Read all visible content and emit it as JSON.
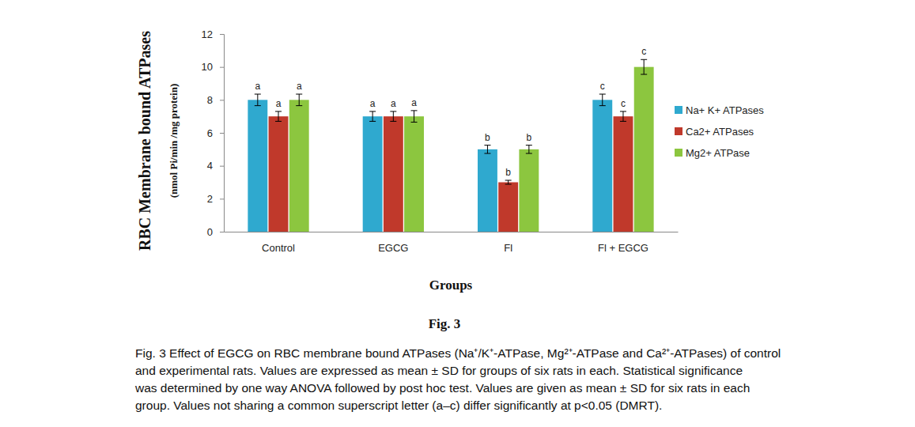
{
  "chart_data": {
    "type": "bar",
    "title": "Fig. 3",
    "caption": [
      "Fig. 3 Effect of EGCG on RBC membrane bound ATPases (Na⁺/K⁺-ATPase, Mg²⁺-ATPase and Ca²⁺-ATPases) of control",
      "and experimental rats. Values are expressed as mean ± SD for groups of six rats in each. Statistical significance",
      "was determined by one way ANOVA followed by post hoc test. Values are given as mean ± SD for six rats in each",
      "group. Values not sharing a common superscript letter (a–c) differ significantly at p<0.05 (DMRT)."
    ],
    "xlabel": "Groups",
    "ylabel": [
      "RBC Membrane bound ATPases",
      "(nmol Pi/min /mg protein)"
    ],
    "categories": [
      "Control",
      "EGCG",
      "Fl",
      "Fl + EGCG"
    ],
    "series": [
      {
        "name": "Na+ K+ ATPases",
        "color": "#2fa9cf",
        "values": [
          8,
          7,
          5,
          8
        ],
        "errors": [
          0.35,
          0.3,
          0.25,
          0.35
        ],
        "letters": [
          "a",
          "a",
          "b",
          "c"
        ]
      },
      {
        "name": "Ca2+ ATPases",
        "color": "#c0392b",
        "values": [
          7,
          7,
          3,
          7
        ],
        "errors": [
          0.3,
          0.3,
          0.12,
          0.3
        ],
        "letters": [
          "a",
          "a",
          "b",
          "c"
        ]
      },
      {
        "name": "Mg2+ ATPase",
        "color": "#8cc63f",
        "values": [
          8,
          7,
          5,
          10
        ],
        "errors": [
          0.35,
          0.35,
          0.25,
          0.45
        ],
        "letters": [
          "a",
          "a",
          "b",
          "c"
        ]
      }
    ],
    "ylim": [
      0,
      12
    ],
    "yticks": [
      0,
      2,
      4,
      6,
      8,
      10,
      12
    ],
    "grid": false,
    "legend": "right"
  }
}
